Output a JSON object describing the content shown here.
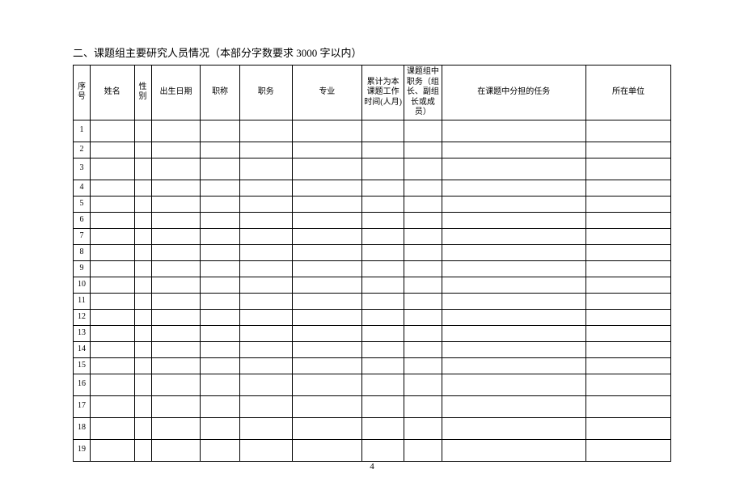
{
  "title_prefix": "二、课题组主要研究人员情况",
  "title_note": "（本部分字数要求 3000 字以内）",
  "headers": {
    "seq": "序号",
    "name": "姓名",
    "sex": "性别",
    "birth": "出生日期",
    "pro_title": "职称",
    "duty": "职务",
    "major": "专业",
    "time": "累计为本课题工作时间(人月)",
    "role": "课题组中职务（组长、副组长或成员）",
    "task": "在课题中分担的任务",
    "unit": "所在单位"
  },
  "row_nums": [
    "1",
    "2",
    "3",
    "4",
    "5",
    "6",
    "7",
    "8",
    "9",
    "10",
    "11",
    "12",
    "13",
    "14",
    "15",
    "16",
    "17",
    "18",
    "19"
  ],
  "tall_rows": [
    1,
    3,
    16,
    17,
    18,
    19
  ],
  "page_number": "4"
}
